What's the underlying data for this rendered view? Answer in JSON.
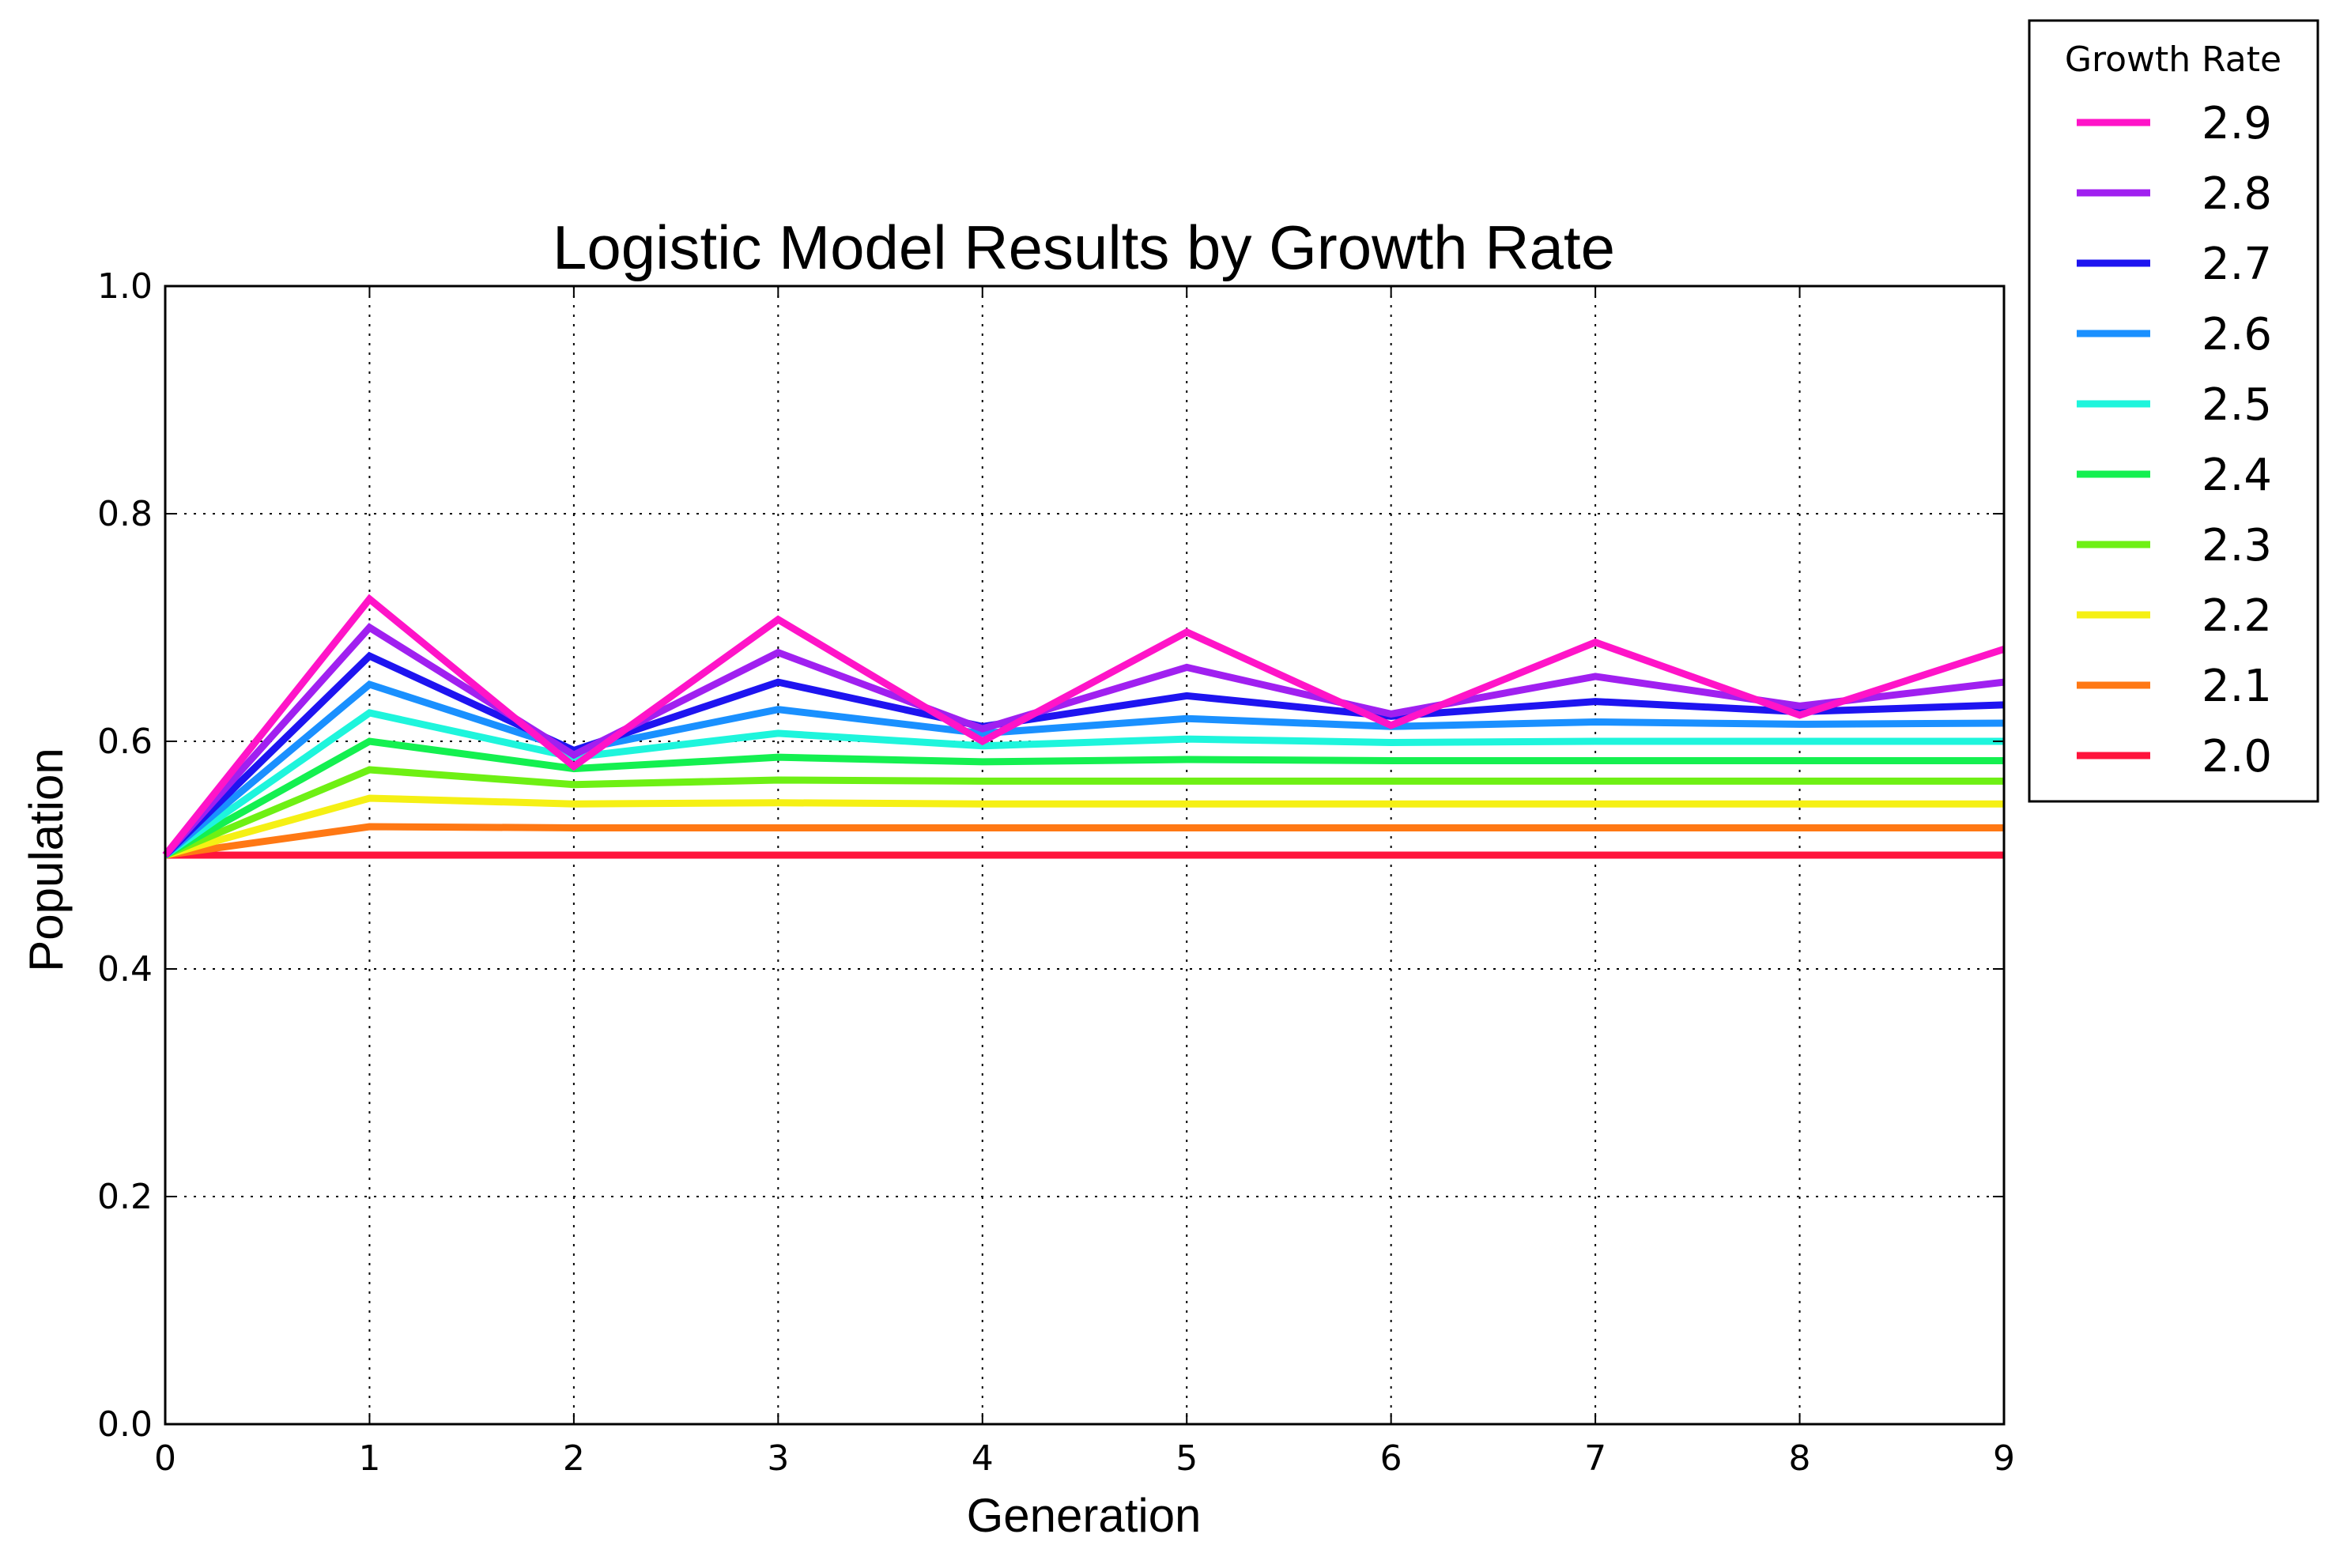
{
  "chart_data": {
    "type": "line",
    "title": "Logistic Model Results by Growth Rate",
    "xlabel": "Generation",
    "ylabel": "Population",
    "xlim": [
      0,
      9
    ],
    "ylim": [
      0.0,
      1.0
    ],
    "grid": true,
    "legend_position": "outside-top-right",
    "legend_title": "Growth Rate",
    "x": [
      0,
      1,
      2,
      3,
      4,
      5,
      6,
      7,
      8,
      9
    ],
    "x_ticks": [
      "0",
      "1",
      "2",
      "3",
      "4",
      "5",
      "6",
      "7",
      "8",
      "9"
    ],
    "y_ticks": [
      "0.0",
      "0.2",
      "0.4",
      "0.6",
      "0.8",
      "1.0"
    ],
    "series": [
      {
        "name": "2.9",
        "color": "#ff14c8",
        "values": [
          0.5,
          0.725,
          0.578,
          0.707,
          0.6,
          0.696,
          0.614,
          0.687,
          0.623,
          0.681
        ]
      },
      {
        "name": "2.8",
        "color": "#a020f0",
        "values": [
          0.5,
          0.7,
          0.588,
          0.678,
          0.611,
          0.665,
          0.624,
          0.657,
          0.631,
          0.652
        ]
      },
      {
        "name": "2.7",
        "color": "#1e14f0",
        "values": [
          0.5,
          0.675,
          0.592,
          0.652,
          0.613,
          0.64,
          0.622,
          0.635,
          0.626,
          0.632
        ]
      },
      {
        "name": "2.6",
        "color": "#1a90ff",
        "values": [
          0.5,
          0.65,
          0.592,
          0.628,
          0.607,
          0.62,
          0.613,
          0.617,
          0.615,
          0.616
        ]
      },
      {
        "name": "2.5",
        "color": "#1ef5dc",
        "values": [
          0.5,
          0.625,
          0.586,
          0.607,
          0.596,
          0.602,
          0.599,
          0.6,
          0.6,
          0.6
        ]
      },
      {
        "name": "2.4",
        "color": "#14f050",
        "values": [
          0.5,
          0.6,
          0.576,
          0.586,
          0.582,
          0.584,
          0.583,
          0.583,
          0.583,
          0.583
        ]
      },
      {
        "name": "2.3",
        "color": "#6ef014",
        "values": [
          0.5,
          0.575,
          0.562,
          0.566,
          0.565,
          0.565,
          0.565,
          0.565,
          0.565,
          0.565
        ]
      },
      {
        "name": "2.2",
        "color": "#f5f014",
        "values": [
          0.5,
          0.55,
          0.545,
          0.546,
          0.545,
          0.545,
          0.545,
          0.545,
          0.545,
          0.545
        ]
      },
      {
        "name": "2.1",
        "color": "#ff7814",
        "values": [
          0.5,
          0.525,
          0.524,
          0.524,
          0.524,
          0.524,
          0.524,
          0.524,
          0.524,
          0.524
        ]
      },
      {
        "name": "2.0",
        "color": "#ff143c",
        "values": [
          0.5,
          0.5,
          0.5,
          0.5,
          0.5,
          0.5,
          0.5,
          0.5,
          0.5,
          0.5
        ]
      }
    ]
  }
}
